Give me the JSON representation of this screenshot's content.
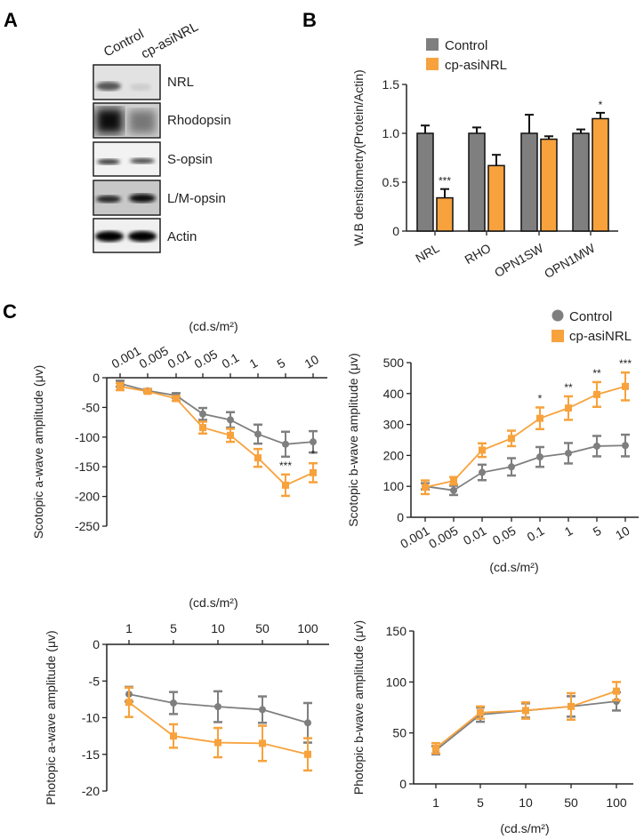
{
  "panels": {
    "a": "A",
    "b": "B",
    "c": "C"
  },
  "colors": {
    "control": "#7f7f7f",
    "treated": "#f7a23c",
    "axis": "#222222"
  },
  "legend": {
    "control": "Control",
    "treated": "cp-asiNRL"
  },
  "western_blot": {
    "lanes": [
      "Control",
      "cp-asiNRL"
    ],
    "bands": [
      "NRL",
      "Rhodopsin",
      "S-opsin",
      "L/M-opsin",
      "Actin"
    ]
  },
  "chart_data": [
    {
      "id": "wb",
      "type": "bar",
      "title": "",
      "ylabel": "W.B densitometry(Protein/Actin)",
      "xlabel": "",
      "categories": [
        "NRL",
        "RHO",
        "OPN1SW",
        "OPN1MW"
      ],
      "ylim": [
        0,
        1.5
      ],
      "yticks": [
        "0",
        "0.5",
        "1.0",
        "1.5"
      ],
      "legend_position": "top",
      "series": [
        {
          "name": "Control",
          "values": [
            1.0,
            1.0,
            1.0,
            1.0
          ],
          "errors": [
            0.08,
            0.06,
            0.19,
            0.04
          ]
        },
        {
          "name": "cp-asiNRL",
          "values": [
            0.34,
            0.67,
            0.94,
            1.15
          ],
          "errors": [
            0.09,
            0.11,
            0.03,
            0.06
          ]
        }
      ],
      "significance": [
        "***",
        "",
        "",
        "*"
      ]
    },
    {
      "id": "scotopic_a",
      "type": "line",
      "ylabel": "Scotopic a-wave amplitude (μv)",
      "xlabel": "(cd.s/m²)",
      "categories": [
        "0.001",
        "0.005",
        "0.01",
        "0.05",
        "0.1",
        "1",
        "5",
        "10"
      ],
      "ylim": [
        -250,
        0
      ],
      "yticks": [
        "0",
        "-50",
        "-100",
        "-150",
        "-200",
        "-250"
      ],
      "series": [
        {
          "name": "Control",
          "values": [
            -10,
            -22,
            -30,
            -61,
            -71,
            -95,
            -112,
            -108
          ],
          "errors": [
            5,
            3,
            4,
            10,
            13,
            16,
            21,
            18
          ]
        },
        {
          "name": "cp-asiNRL",
          "values": [
            -15,
            -23,
            -35,
            -84,
            -97,
            -135,
            -181,
            -160
          ],
          "errors": [
            6,
            3,
            4,
            10,
            11,
            15,
            18,
            16
          ]
        }
      ],
      "significance": [
        "",
        "",
        "",
        "",
        "",
        "",
        "***",
        "*"
      ]
    },
    {
      "id": "scotopic_b",
      "type": "line",
      "ylabel": "Scotopic b-wave amplitude (μv)",
      "xlabel": "(cd.s/m²)",
      "categories": [
        "0.001",
        "0.005",
        "0.01",
        "0.05",
        "0.1",
        "1",
        "5",
        "10"
      ],
      "ylim": [
        0,
        500
      ],
      "yticks": [
        "0",
        "100",
        "200",
        "300",
        "400",
        "500"
      ],
      "legend_position": "top-right",
      "series": [
        {
          "name": "Control",
          "values": [
            100,
            87,
            145,
            163,
            195,
            207,
            230,
            232
          ],
          "errors": [
            10,
            15,
            25,
            28,
            32,
            33,
            33,
            35
          ]
        },
        {
          "name": "cp-asiNRL",
          "values": [
            97,
            118,
            217,
            255,
            320,
            353,
            397,
            423
          ],
          "errors": [
            22,
            12,
            22,
            25,
            35,
            38,
            40,
            45
          ]
        }
      ],
      "significance": [
        "",
        "",
        "",
        "",
        "*",
        "**",
        "**",
        "***"
      ]
    },
    {
      "id": "photopic_a",
      "type": "line",
      "ylabel": "Photopic a-wave amplitude (μv)",
      "xlabel": "(cd.s/m²)",
      "categories": [
        "1",
        "5",
        "10",
        "50",
        "100"
      ],
      "ylim": [
        -20,
        0
      ],
      "yticks": [
        "0",
        "-5",
        "-10",
        "-15",
        "-20"
      ],
      "series": [
        {
          "name": "Control",
          "values": [
            -6.8,
            -8.0,
            -8.5,
            -8.9,
            -10.7
          ],
          "errors": [
            1.0,
            1.5,
            2.1,
            1.8,
            2.7
          ]
        },
        {
          "name": "cp-asiNRL",
          "values": [
            -7.9,
            -12.5,
            -13.4,
            -13.5,
            -15.0
          ],
          "errors": [
            2.0,
            1.6,
            2.0,
            2.4,
            2.2
          ]
        }
      ],
      "significance": [
        "",
        "",
        "",
        "",
        ""
      ]
    },
    {
      "id": "photopic_b",
      "type": "line",
      "ylabel": "Photopic b-wave amplitude (μv)",
      "xlabel": "(cd.s/m²)",
      "categories": [
        "1",
        "5",
        "10",
        "50",
        "100"
      ],
      "ylim": [
        0,
        150
      ],
      "yticks": [
        "0",
        "50",
        "100",
        "150"
      ],
      "series": [
        {
          "name": "Control",
          "values": [
            33,
            68,
            72,
            76,
            81
          ],
          "errors": [
            4,
            7,
            7,
            10,
            9
          ]
        },
        {
          "name": "cp-asiNRL",
          "values": [
            35,
            70,
            72,
            76,
            91
          ],
          "errors": [
            5,
            6,
            8,
            13,
            9
          ]
        }
      ],
      "significance": [
        "",
        "",
        "",
        "",
        ""
      ]
    }
  ]
}
